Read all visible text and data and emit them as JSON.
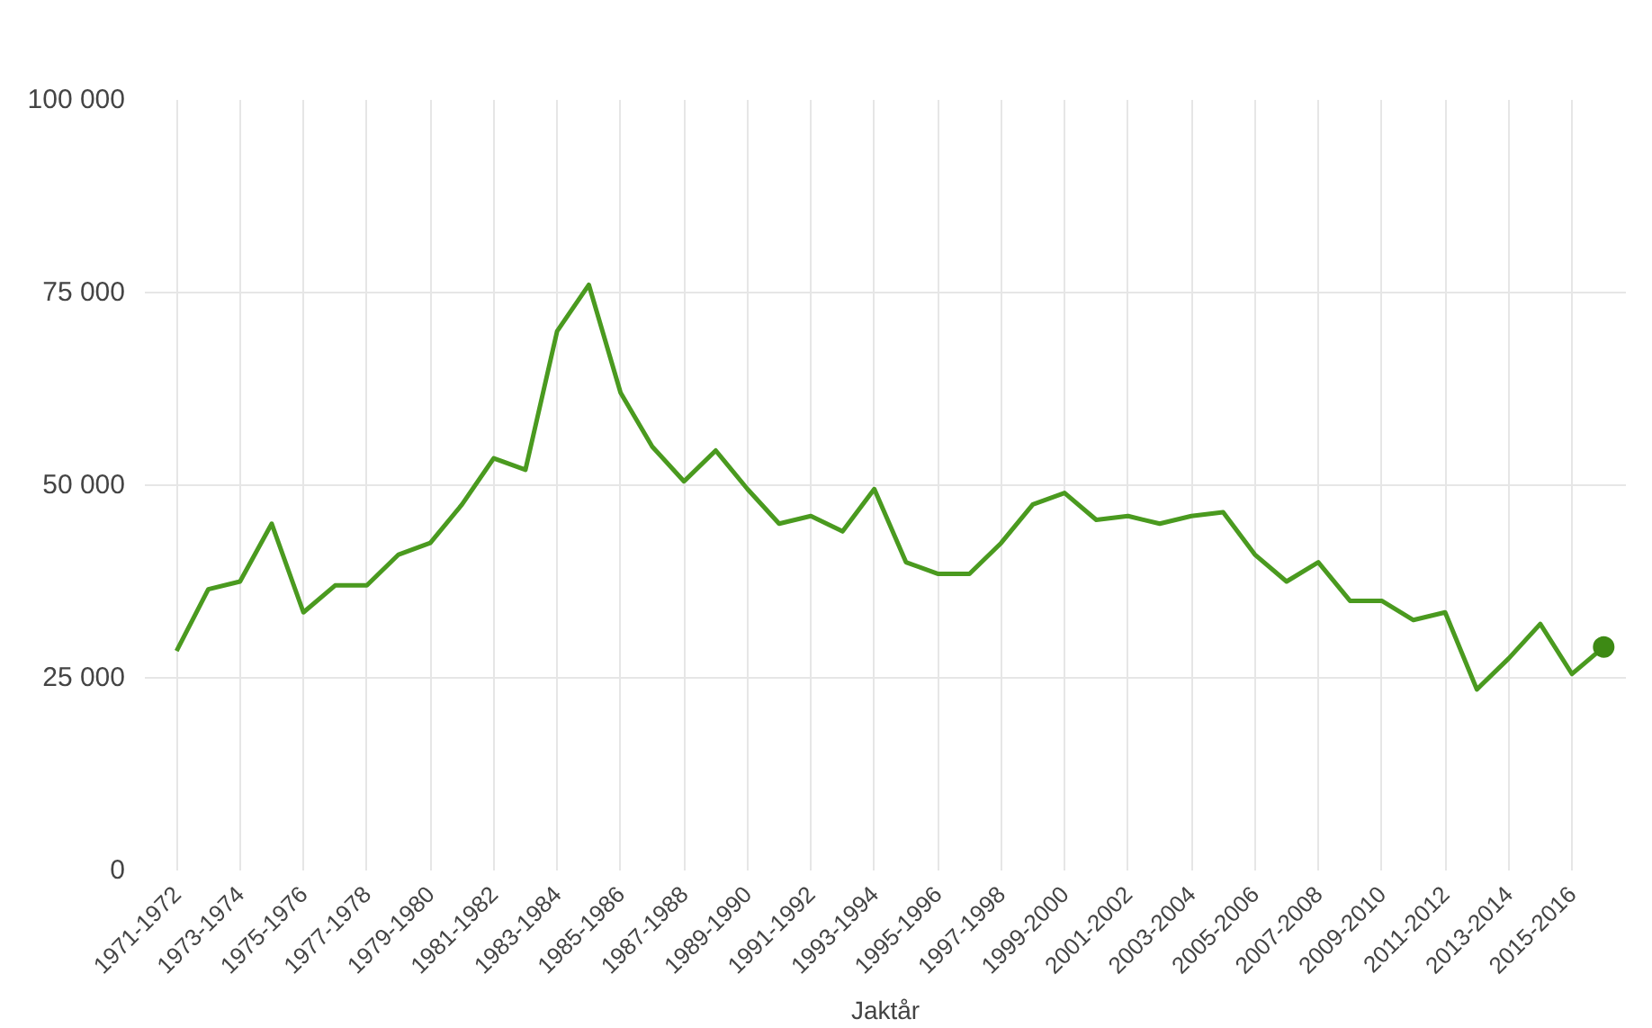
{
  "chart_data": {
    "type": "line",
    "xlabel": "Jaktår",
    "categories": [
      "1971-1972",
      null,
      "1973-1974",
      null,
      "1975-1976",
      null,
      "1977-1978",
      null,
      "1979-1980",
      null,
      "1981-1982",
      null,
      "1983-1984",
      null,
      "1985-1986",
      null,
      "1987-1988",
      null,
      "1989-1990",
      null,
      "1991-1992",
      null,
      "1993-1994",
      null,
      "1995-1996",
      null,
      "1997-1998",
      null,
      "1999-2000",
      null,
      "2001-2002",
      null,
      "2003-2004",
      null,
      "2005-2006",
      null,
      "2007-2008",
      null,
      "2009-2010",
      null,
      "2011-2012",
      null,
      "2013-2014",
      null,
      "2015-2016",
      null
    ],
    "series": [
      {
        "color": "#4a9a1f",
        "marker": "none",
        "values": [
          28500,
          36500,
          37500,
          45000,
          33500,
          37000,
          37000,
          41000,
          42500,
          47500,
          53500,
          52000,
          70000,
          76000,
          62000,
          55000,
          50500,
          54500,
          49500,
          45000,
          46000,
          44000,
          49500,
          40000,
          38500,
          38500,
          42500,
          47500,
          49000,
          45500,
          46000,
          45000,
          46000,
          46500,
          41000,
          37500,
          40000,
          35000,
          35000,
          32500,
          33500,
          23500,
          27500,
          32000,
          25500,
          29000
        ]
      },
      {
        "type": "scatter",
        "color": "#3d8a14",
        "marker": "circle",
        "values": [
          null,
          null,
          null,
          null,
          null,
          null,
          null,
          null,
          null,
          null,
          null,
          null,
          null,
          null,
          null,
          null,
          null,
          null,
          null,
          null,
          null,
          null,
          null,
          null,
          null,
          null,
          null,
          null,
          null,
          null,
          null,
          null,
          null,
          null,
          null,
          null,
          null,
          null,
          null,
          null,
          null,
          null,
          null,
          null,
          null,
          29000
        ]
      }
    ],
    "ylim": [
      0,
      100000
    ],
    "yticks": [
      {
        "value": 0,
        "label": "0"
      },
      {
        "value": 25000,
        "label": "25 000"
      },
      {
        "value": 50000,
        "label": "50 000"
      },
      {
        "value": 75000,
        "label": "75 000"
      },
      {
        "value": 100000,
        "label": "100 000"
      }
    ],
    "grid": true
  }
}
